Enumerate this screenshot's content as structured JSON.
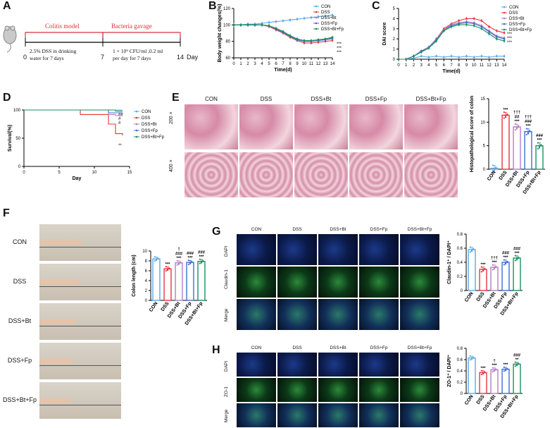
{
  "panels": {
    "A": {
      "label": "A",
      "model_label": "Colitis model",
      "gavage_label": "Bacteria gavage",
      "t0": "0",
      "t7": "7",
      "t14": "14",
      "day_unit": "Day",
      "dss_text_1": "2.5% DSS in drinking",
      "dss_text_2": "water for 7 days",
      "gav_text_1": "1 × 10⁹ CFU/ml ,0.2 ml",
      "gav_text_2": "per day  for 7 days"
    },
    "B": {
      "label": "B"
    },
    "C": {
      "label": "C"
    },
    "D": {
      "label": "D"
    },
    "E": {
      "label": "E",
      "groups": [
        "CON",
        "DSS",
        "DSS+Bt",
        "DSS+Fp",
        "DSS+Bt+Fp"
      ],
      "rows": [
        "200 ×",
        "400 ×"
      ]
    },
    "F": {
      "label": "F",
      "groups": [
        "CON",
        "DSS",
        "DSS+Bt",
        "DSS+Fp",
        "DSS+Bt+Fp"
      ]
    },
    "G": {
      "label": "G",
      "groups": [
        "CON",
        "DSS",
        "DSS+Bt",
        "DSS+Fp",
        "DSS+Bt+Fp"
      ],
      "rows": [
        "DAPI",
        "Claudin-1",
        "Merge"
      ]
    },
    "H": {
      "label": "H",
      "groups": [
        "CON",
        "DSS",
        "DSS+Bt",
        "DSS+Fp",
        "DSS+Bt+Fp"
      ],
      "rows": [
        "DAPI",
        "ZO-1",
        "Merge"
      ]
    }
  },
  "colors": {
    "CON": "#5aa9e6",
    "DSS": "#e8343b",
    "DSS+Bt": "#b47cc7",
    "DSS+Fp": "#3b6fd1",
    "DSS+Bt+Fp": "#17915e"
  },
  "chart_data": [
    {
      "id": "B",
      "type": "line",
      "xlabel": "Time(d)",
      "ylabel": "Body weight changes(%)",
      "x": [
        0,
        1,
        2,
        3,
        4,
        5,
        6,
        7,
        8,
        9,
        10,
        11,
        12,
        13,
        14
      ],
      "ylim": [
        60,
        120
      ],
      "yticks": [
        60,
        80,
        100,
        120
      ],
      "series": [
        {
          "name": "CON",
          "values": [
            100,
            100,
            101,
            101,
            102,
            103,
            104,
            105,
            106,
            107,
            108,
            109,
            110,
            111,
            112
          ]
        },
        {
          "name": "DSS",
          "values": [
            100,
            100,
            100,
            100,
            100,
            98,
            94,
            90,
            85,
            81,
            78,
            78,
            79,
            80,
            81
          ]
        },
        {
          "name": "DSS+Bt",
          "values": [
            100,
            100,
            100,
            100,
            100,
            99,
            95,
            91,
            86,
            82,
            80,
            80,
            81,
            82,
            83
          ]
        },
        {
          "name": "DSS+Fp",
          "values": [
            100,
            100,
            100,
            100,
            100,
            99,
            95,
            91,
            86,
            82,
            80,
            80,
            81,
            82,
            84
          ]
        },
        {
          "name": "DSS+Bt+Fp",
          "values": [
            100,
            100,
            100,
            100,
            100,
            99,
            96,
            92,
            87,
            83,
            81,
            81,
            82,
            83,
            85
          ]
        }
      ],
      "annotation": "***"
    },
    {
      "id": "C",
      "type": "line",
      "xlabel": "Time(d)",
      "ylabel": "DAI score",
      "x": [
        0,
        1,
        2,
        3,
        4,
        5,
        6,
        7,
        8,
        9,
        10,
        11,
        12,
        13,
        14
      ],
      "ylim": [
        0,
        5
      ],
      "yticks": [
        0,
        1,
        2,
        3,
        4,
        5
      ],
      "series": [
        {
          "name": "CON",
          "values": [
            0,
            0,
            0.1,
            0.3,
            0.2,
            0.3,
            0.2,
            0.3,
            0.2,
            0.3,
            0.2,
            0.3,
            0.2,
            0.3,
            0.3
          ]
        },
        {
          "name": "DSS",
          "values": [
            0,
            0,
            0.3,
            0.8,
            1.2,
            2.0,
            3.0,
            3.5,
            3.8,
            4.0,
            4.0,
            3.8,
            3.2,
            2.8,
            2.6
          ]
        },
        {
          "name": "DSS+Bt",
          "values": [
            0,
            0,
            0.3,
            0.8,
            1.2,
            2.0,
            2.9,
            3.4,
            3.6,
            3.7,
            3.6,
            3.3,
            2.8,
            2.3,
            2.1
          ]
        },
        {
          "name": "DSS+Fp",
          "values": [
            0,
            0,
            0.3,
            0.8,
            1.1,
            1.9,
            2.8,
            3.3,
            3.5,
            3.6,
            3.5,
            3.2,
            2.7,
            2.2,
            2.0
          ]
        },
        {
          "name": "DSS+Bt+Fp",
          "values": [
            0,
            0,
            0.3,
            0.7,
            1.1,
            1.8,
            2.8,
            3.2,
            3.4,
            3.4,
            3.3,
            3.0,
            2.5,
            2.0,
            1.8
          ]
        }
      ],
      "annotation": "***"
    },
    {
      "id": "D",
      "type": "line",
      "xlabel": "Day",
      "ylabel": "Survival(%)",
      "x": [
        0,
        8,
        12,
        13,
        14
      ],
      "xlim": [
        0,
        15
      ],
      "xticks": [
        0,
        5,
        10,
        15
      ],
      "ylim": [
        0,
        100
      ],
      "yticks": [
        0,
        50,
        100
      ],
      "series": [
        {
          "name": "CON",
          "values": [
            100,
            100,
            100,
            100,
            100
          ]
        },
        {
          "name": "DSS",
          "values": [
            100,
            92,
            75,
            58,
            55
          ]
        },
        {
          "name": "DSS+Bt",
          "values": [
            100,
            100,
            92,
            90,
            90
          ]
        },
        {
          "name": "DSS+Fp",
          "values": [
            100,
            100,
            95,
            95,
            95
          ]
        },
        {
          "name": "DSS+Bt+Fp",
          "values": [
            100,
            100,
            100,
            98,
            98
          ]
        }
      ],
      "annotations": [
        "##",
        "#",
        "#",
        "**"
      ]
    },
    {
      "id": "E",
      "type": "bar",
      "ylabel": "Histopathological score of colon",
      "categories": [
        "CON",
        "DSS",
        "DSS+Bt",
        "DSS+Fp",
        "DSS+Bt+Fp"
      ],
      "values": [
        0.2,
        11.5,
        9.0,
        8.0,
        5.0
      ],
      "ylim": [
        0,
        15
      ],
      "yticks": [
        0,
        5,
        10,
        15
      ],
      "annotations": [
        "",
        "***",
        "†††\n##\n***",
        "†††\n###\n***",
        "###\n***"
      ]
    },
    {
      "id": "F",
      "type": "bar",
      "ylabel": "Colon length (cm)",
      "categories": [
        "CON",
        "DSS",
        "DSS+Bt",
        "DSS+Fp",
        "DSS+Bt+Fp"
      ],
      "values": [
        8.4,
        6.4,
        7.6,
        7.7,
        7.9
      ],
      "ylim": [
        0,
        10
      ],
      "yticks": [
        0,
        2,
        4,
        6,
        8,
        10
      ],
      "annotations": [
        "",
        "***",
        "†\n###\n***",
        "###\n***",
        "###\n***"
      ]
    },
    {
      "id": "G",
      "type": "bar",
      "ylabel": "Claudin-1⁺ / DAPI⁺",
      "categories": [
        "CON",
        "DSS",
        "DSS+Bt",
        "DSS+Fp",
        "DSS+Bt+Fp"
      ],
      "values": [
        0.58,
        0.3,
        0.33,
        0.4,
        0.46
      ],
      "ylim": [
        0,
        0.8
      ],
      "yticks": [
        0.0,
        0.2,
        0.4,
        0.6,
        0.8
      ],
      "annotations": [
        "",
        "***",
        "†††\n***",
        "###\n***",
        "###\n***"
      ]
    },
    {
      "id": "H",
      "type": "bar",
      "ylabel": "ZO-1⁺ / DAPI⁺",
      "categories": [
        "CON",
        "DSS",
        "DSS+Bt",
        "DSS+Fp",
        "DSS+Bt+Fp"
      ],
      "values": [
        0.63,
        0.37,
        0.42,
        0.43,
        0.52
      ],
      "ylim": [
        0,
        0.8
      ],
      "yticks": [
        0.0,
        0.2,
        0.4,
        0.6,
        0.8
      ],
      "annotations": [
        "",
        "***",
        "†\n***",
        "***",
        "###\n**"
      ]
    }
  ]
}
